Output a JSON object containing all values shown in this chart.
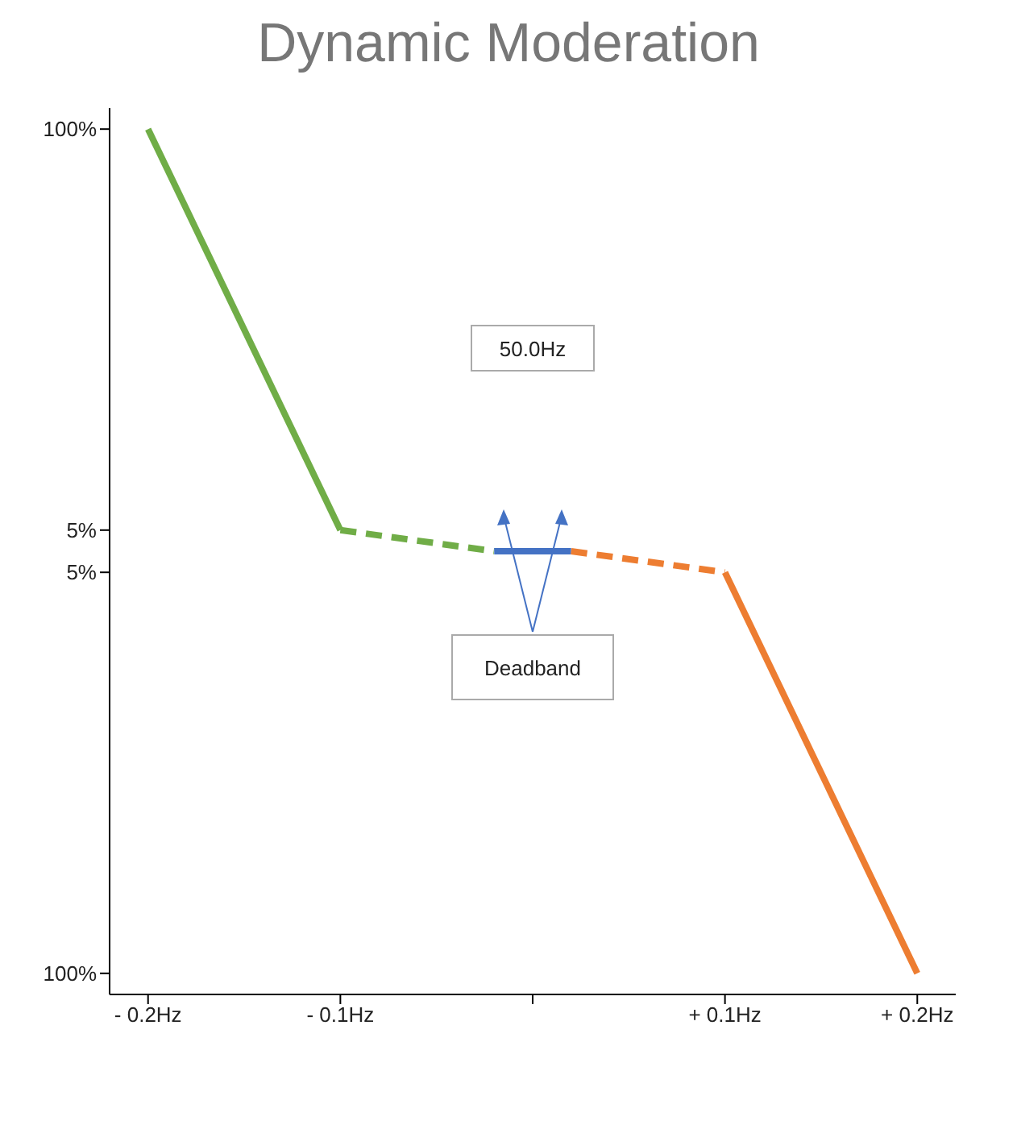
{
  "chart_data": {
    "type": "line",
    "title": "Dynamic Moderation",
    "series": [
      {
        "color": "#70ad47",
        "x": [
          -0.2,
          -0.1
        ],
        "values": [
          100,
          5
        ],
        "line_style": "solid"
      },
      {
        "color": "#70ad47",
        "x": [
          -0.1,
          -0.02
        ],
        "values": [
          5,
          0
        ],
        "line_style": "dashed"
      },
      {
        "color": "#4472c4",
        "x": [
          -0.02,
          0.02
        ],
        "values": [
          0,
          0
        ],
        "line_style": "solid"
      },
      {
        "color": "#ed7d31",
        "x": [
          0.02,
          0.1
        ],
        "values": [
          0,
          -5
        ],
        "line_style": "dashed"
      },
      {
        "color": "#ed7d31",
        "x": [
          0.1,
          0.2
        ],
        "values": [
          -5,
          -100
        ],
        "line_style": "solid"
      }
    ],
    "xlim": [
      -0.22,
      0.22
    ],
    "xticks": [
      {
        "value": -0.2,
        "label": "- 0.2Hz"
      },
      {
        "value": -0.1,
        "label": "- 0.1Hz"
      },
      {
        "value": 0,
        "label": null
      },
      {
        "value": 0.1,
        "label": "+ 0.1Hz"
      },
      {
        "value": 0.2,
        "label": "+ 0.2Hz"
      }
    ],
    "ylim": [
      -105,
      105
    ],
    "yticks": [
      {
        "value": 100,
        "label": "100%"
      },
      {
        "value": 5,
        "label": "5%"
      },
      {
        "value": -5,
        "label": "5%"
      },
      {
        "value": -100,
        "label": "100%"
      }
    ],
    "annotations": [
      "50.0Hz",
      "Deadband"
    ],
    "grid": false,
    "legend": false,
    "marker": "none"
  }
}
